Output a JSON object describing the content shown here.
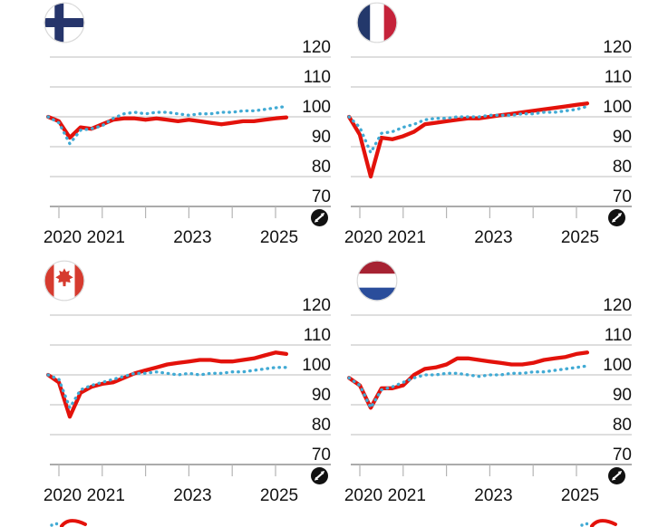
{
  "figure": {
    "kind": "small-multiples-line-charts",
    "rows": 2,
    "cols": 2
  },
  "colors": {
    "red_line": "#e3120b",
    "blue_dotted": "#41aad4",
    "gridline": "#c9c9c9",
    "axis_line": "#8f8f8f",
    "tick": "#b5b5b5",
    "label_text": "#121212",
    "expand_icon_bg": "#111111",
    "expand_icon_glyph": "#ffffff",
    "flag_finland_blue": "#26356b",
    "flag_france_blue": "#23386b",
    "flag_france_red": "#c5223a",
    "flag_canada_red": "#d63b2f",
    "flag_netherlands_red": "#a62232",
    "flag_netherlands_blue": "#2a4d9b"
  },
  "axis": {
    "y_ticks": [
      120,
      110,
      100,
      90,
      80,
      70
    ],
    "y_tick_labels": [
      "120",
      "110",
      "100",
      "90",
      "80",
      "70"
    ],
    "x_tick_years": [
      2020,
      2021,
      2022,
      2023,
      2024,
      2025
    ],
    "x_labeled_years": [
      2020,
      2021,
      2023,
      2025
    ],
    "x_labels": [
      "2020",
      "2021",
      "2023",
      "2025"
    ],
    "baseline_value": 100,
    "grid": true,
    "legend": "none-visible (cut off below image edge)"
  },
  "chart_data": [
    {
      "type": "line",
      "title": "Finland",
      "flag": "fi",
      "x_start": 2019.75,
      "x_step_years": 0.25,
      "x_unit": "quarter",
      "ylim": [
        66,
        124
      ],
      "y_ticks": [
        120,
        110,
        100,
        90,
        80,
        70
      ],
      "series": [
        {
          "name": "solid-red",
          "style": "solid",
          "color": "#e3120b",
          "values": [
            100,
            98.5,
            93,
            96.5,
            96,
            97.5,
            99,
            99.5,
            99.5,
            99,
            99.5,
            99,
            98.5,
            99,
            98.5,
            98,
            97.5,
            98,
            98.5,
            98.5,
            99,
            99.5,
            99.8
          ]
        },
        {
          "name": "dotted-blue",
          "style": "dotted",
          "color": "#41aad4",
          "values": [
            100,
            98,
            91,
            95.5,
            96,
            97,
            99.5,
            101,
            101.5,
            101,
            101.5,
            101.5,
            101,
            100.5,
            101,
            101,
            101.5,
            101.5,
            102,
            102,
            102.5,
            103,
            103.5
          ]
        }
      ]
    },
    {
      "type": "line",
      "title": "France",
      "flag": "fr",
      "x_start": 2019.75,
      "x_step_years": 0.25,
      "x_unit": "quarter",
      "ylim": [
        66,
        124
      ],
      "y_ticks": [
        120,
        110,
        100,
        90,
        80,
        70
      ],
      "series": [
        {
          "name": "solid-red",
          "style": "solid",
          "color": "#e3120b",
          "values": [
            100,
            94,
            80,
            93,
            92.5,
            93.5,
            95,
            97.5,
            98,
            98.5,
            99,
            99.5,
            99.5,
            100,
            100.5,
            101,
            101.5,
            102,
            102.5,
            103,
            103.5,
            104,
            104.5
          ]
        },
        {
          "name": "dotted-blue",
          "style": "dotted",
          "color": "#41aad4",
          "values": [
            100,
            96.5,
            88,
            94.5,
            95,
            96.5,
            97.5,
            99,
            99.5,
            99.5,
            100,
            100,
            100,
            100.5,
            100.5,
            100.5,
            101,
            101,
            101.5,
            101.5,
            102,
            102.5,
            103.5
          ]
        }
      ]
    },
    {
      "type": "line",
      "title": "Canada",
      "flag": "ca",
      "x_start": 2019.75,
      "x_step_years": 0.25,
      "x_unit": "quarter",
      "ylim": [
        66,
        124
      ],
      "y_ticks": [
        120,
        110,
        100,
        90,
        80,
        70
      ],
      "series": [
        {
          "name": "solid-red",
          "style": "solid",
          "color": "#e3120b",
          "values": [
            100,
            97.5,
            86,
            94,
            96,
            97,
            97.5,
            99,
            100.5,
            101.5,
            102.5,
            103.5,
            104,
            104.5,
            105,
            105,
            104.5,
            104.5,
            105,
            105.5,
            106.5,
            107.5,
            107
          ]
        },
        {
          "name": "dotted-blue",
          "style": "dotted",
          "color": "#41aad4",
          "values": [
            100,
            98.5,
            89,
            95,
            96.5,
            97.5,
            98.5,
            99.5,
            100.5,
            100.5,
            101,
            100.5,
            100,
            100.5,
            100,
            100.5,
            100.5,
            101,
            101,
            101.5,
            102,
            102.5,
            102.5
          ]
        }
      ]
    },
    {
      "type": "line",
      "title": "Netherlands",
      "flag": "nl",
      "x_start": 2019.75,
      "x_step_years": 0.25,
      "x_unit": "quarter",
      "ylim": [
        66,
        124
      ],
      "y_ticks": [
        120,
        110,
        100,
        90,
        80,
        70
      ],
      "series": [
        {
          "name": "solid-red",
          "style": "solid",
          "color": "#e3120b",
          "values": [
            99,
            96.5,
            89,
            95.5,
            95.5,
            96.5,
            100,
            102,
            102.5,
            103.5,
            105.5,
            105.5,
            105,
            104.5,
            104,
            103.5,
            103.5,
            104,
            105,
            105.5,
            106,
            107,
            107.5
          ]
        },
        {
          "name": "dotted-blue",
          "style": "dotted",
          "color": "#41aad4",
          "values": [
            99,
            96.5,
            89,
            95,
            96,
            97.5,
            99,
            100,
            100,
            100.5,
            100.5,
            100,
            99.5,
            100,
            100,
            100.5,
            100.5,
            101,
            101,
            101.5,
            102,
            102.5,
            103
          ]
        }
      ]
    }
  ],
  "expand_button": {
    "icon": "expand-compare-icon",
    "shape": "black-circle-white-double-arrow"
  },
  "cutoff_next_row": {
    "note": "tops of next chart row lines visible at bottom edge",
    "positions_x": [
      52,
      637
    ]
  }
}
